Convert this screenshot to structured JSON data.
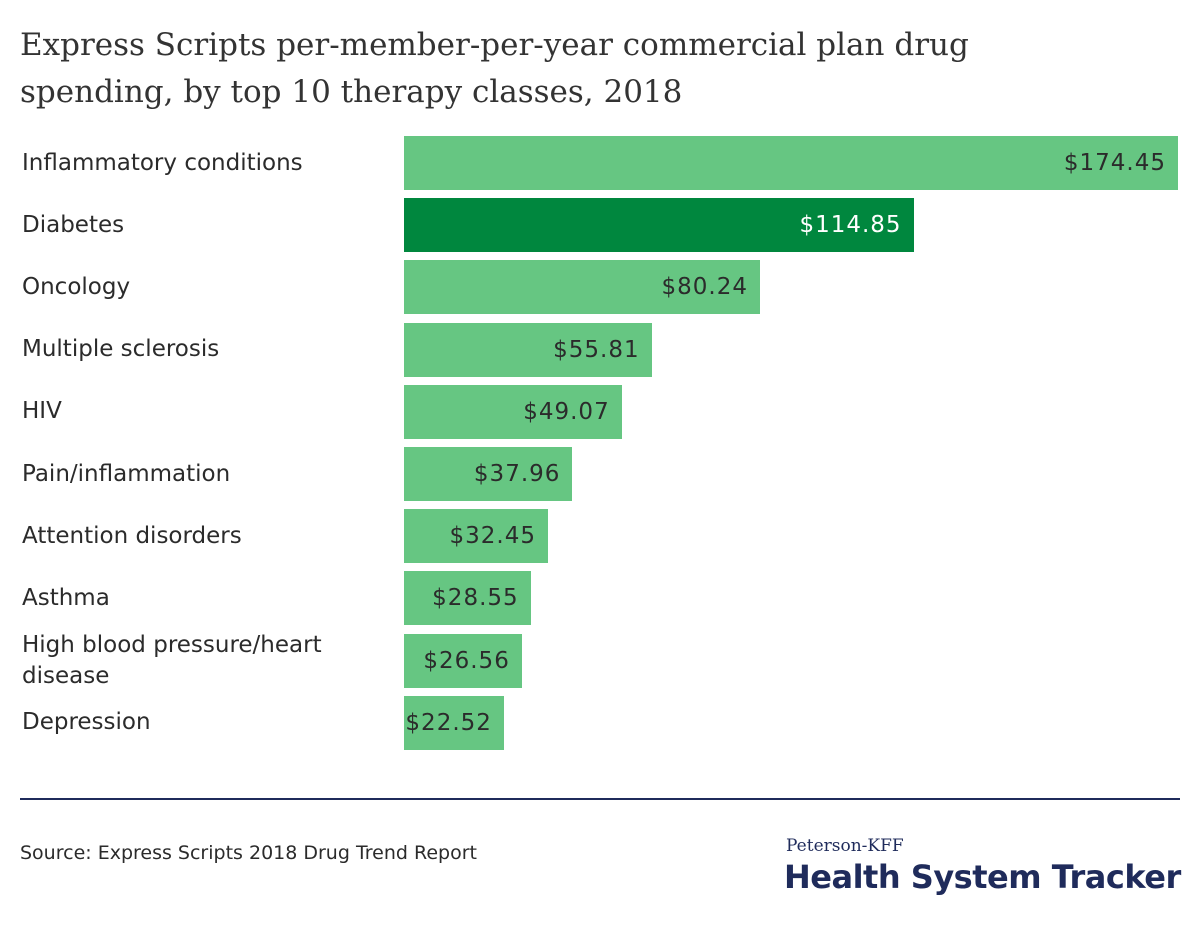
{
  "chart_data": {
    "type": "bar",
    "orientation": "horizontal",
    "title": "Express Scripts per-member-per-year commercial plan drug spending, by top 10 therapy classes, 2018",
    "categories": [
      "Inflammatory conditions",
      "Diabetes",
      "Oncology",
      "Multiple sclerosis",
      "HIV",
      "Pain/inflammation",
      "Attention disorders",
      "Asthma",
      "High blood pressure/heart disease",
      "Depression"
    ],
    "values": [
      174.45,
      114.85,
      80.24,
      55.81,
      49.07,
      37.96,
      32.45,
      28.55,
      26.56,
      22.52
    ],
    "value_labels": [
      "$174.45",
      "$114.85",
      "$80.24",
      "$55.81",
      "$49.07",
      "$37.96",
      "$32.45",
      "$28.55",
      "$26.56",
      "$22.52"
    ],
    "colors": [
      "#66c682",
      "#00873e",
      "#66c682",
      "#66c682",
      "#66c682",
      "#66c682",
      "#66c682",
      "#66c682",
      "#66c682",
      "#66c682"
    ]
  },
  "source": "Source: Express Scripts 2018 Drug Trend Report",
  "branding": {
    "line1": "Peterson-KFF",
    "line2": "Health System Tracker"
  }
}
